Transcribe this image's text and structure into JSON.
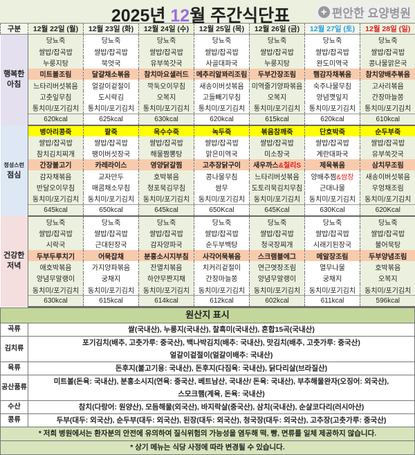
{
  "title": {
    "year": "2025년 ",
    "month": "12",
    "rest": "월 주간식단표",
    "logo": "편안한 요양병원"
  },
  "header": {
    "label": "구분",
    "days": [
      {
        "label": "12월 22일 (월)",
        "color": "#222222"
      },
      {
        "label": "12월 23일 (화)",
        "color": "#222222"
      },
      {
        "label": "12월 24일 (수)",
        "color": "#222222"
      },
      {
        "label": "12월 25일 (목)",
        "color": "#222222"
      },
      {
        "label": "12월 26일 (금)",
        "color": "#222222"
      },
      {
        "label": "12월 27일 (토)",
        "color": "#2aa0e0"
      },
      {
        "label": "12월 28일 (일)",
        "color": "#e0201e"
      }
    ]
  },
  "colors": {
    "breakfast_label": "#e4e0f0",
    "lunch_label": "#dde8f4",
    "dinner_label": "#f4dede",
    "highlight": "#f8cbad",
    "porridge": "#ffff00",
    "alt_column": "#ebf1de"
  },
  "meals": [
    {
      "line1": "행복한",
      "line2": "아침",
      "days": [
        {
          "items": [
            "당뇨죽",
            "쌀밥/잡곡밥",
            "누룽지탕",
            "미트볼조림",
            "느타리버섯볶음",
            "고춧잎무침",
            "통치미/포기김치"
          ],
          "kcal": "620kcal"
        },
        {
          "items": [
            "당뇨죽",
            "쌀밥/잡곡밥",
            "북엇국",
            "달걀채소볶음",
            "얼갈이겉절이",
            "도시락김",
            "통치미/포기김치"
          ],
          "kcal": "625kcal"
        },
        {
          "items": [
            "당뇨죽",
            "쌀밥/잡곡밥",
            "유부쑥갓국",
            "참치마요샐러드",
            "깍둑오이무침",
            "오복지",
            "통치미/포기김치"
          ],
          "kcal": "630kcal"
        },
        {
          "items": [
            "당뇨죽",
            "쌀밥/잡곡밥",
            "사골대파국",
            "메추리알꽈리조림",
            "새송이버섯볶음",
            "고들빼기무침",
            "통치미/포기김치"
          ],
          "kcal": "620kcal"
        },
        {
          "items": [
            "당뇨죽",
            "쌀밥/잡곡밥",
            "누룽지탕",
            "두부간장조림",
            "미역줄기양파볶음",
            "오복지",
            "통치미/포기김치"
          ],
          "kcal": "615kcal"
        },
        {
          "items": [
            "당뇨죽",
            "쌀밥/잡곡밥",
            "완도미역국",
            "햄감자채볶음",
            "숙주나물무침",
            "양념깻잎지",
            "통치미/포기김치"
          ],
          "kcal": "620kcal"
        },
        {
          "items": [
            "당뇨죽",
            "쌀밥/잡곡밥",
            "콩나물맑은국",
            "참치양배추볶음",
            "고사리볶음",
            "간장마늘쫑",
            "통치미/포기김치"
          ],
          "kcal": "610kcal"
        }
      ]
    },
    {
      "line1": "정성스런",
      "line2": "점심",
      "days": [
        {
          "items": [
            "병아리콩죽",
            "쌀밥/잡곡밥",
            "참치김치찌개",
            "간장불고기",
            "감자채볶음",
            "반달오이무침",
            "동치미/포기김치"
          ],
          "kcal": "645kcal"
        },
        {
          "items": [
            "팥죽",
            "쌀밥/잡곡밥",
            "팽이버섯장국",
            "카레라이스",
            "교자만두",
            "매콤채소무침",
            "동치미/포기김치"
          ],
          "kcal": "650kcal"
        },
        {
          "items": [
            "옥수수죽",
            "쌀밥/잡곡밥",
            "해물짬뽕탕",
            "영양닭갈찜",
            "호박볶음",
            "청포묵김무침",
            "동치미/포기김치"
          ],
          "kcal": "645kcal"
        },
        {
          "items": [
            "녹두죽",
            "쌀밥/잡곡밥",
            "맑은미역국",
            "고추장닭구이",
            "콩나물무침",
            "쌈무",
            "동치미/포기김치"
          ],
          "kcal": "650Kcal"
        },
        {
          "items": [
            "볶음참깨죽",
            "쌀밥/잡곡밥",
            "미소장국",
            "새우까스",
            "느타리버섯볶음",
            "도토리묵김치무침",
            "동치미/포기김치"
          ],
          "red": {
            "3": "&칠리S"
          },
          "kcal": "645Kcal"
        },
        {
          "items": [
            "단호박죽",
            "쌀밥/잡곡밥",
            "계란대파국",
            "제육볶음",
            "양배추찜",
            "근대나물",
            "동치미/포기김치"
          ],
          "red": {
            "4": "&쌈장"
          },
          "kcal": "630Kcal"
        },
        {
          "items": [
            "순두부죽",
            "쌀밥/잡곡밥",
            "유부쑥갓국",
            "삼치무조림",
            "새송이버섯볶음",
            "우엉채조림",
            "동치미/포기김치"
          ],
          "kcal": "620Kcal"
        }
      ]
    },
    {
      "line1": "건강한",
      "line2": "저녁",
      "days": [
        {
          "items": [
            "당뇨죽",
            "쌀밥/잡곡밥",
            "시락국",
            "두부두루치기",
            "애호박볶음",
            "양념무말랭이",
            "동치미/포기김치"
          ],
          "kcal": "630kcal"
        },
        {
          "items": [
            "당뇨죽",
            "쌀밥/잡곡밥",
            "근대된장국",
            "어묵잡채",
            "가지양파볶음",
            "궁채지",
            "동치미/포기김치"
          ],
          "kcal": "615kcal"
        },
        {
          "items": [
            "당뇨죽",
            "쌀밥/잡곡밥",
            "감자양파국",
            "분홍소시지부침",
            "잔멸치볶음",
            "하얀무짠지채",
            "동치미/포기김치"
          ],
          "kcal": "614kcal"
        },
        {
          "items": [
            "당뇨죽",
            "쌀밥/잡곡밥",
            "순두부백탕",
            "사각어묵볶음",
            "치커리겉절이",
            "간장마늘쫑",
            "동치미/포기김치"
          ],
          "kcal": "612kcal"
        },
        {
          "items": [
            "당뇨죽",
            "쌀밥/잡곡밥",
            "청국장찌개",
            "스크램블에그",
            "연근엿장조림",
            "양념무말랭이",
            "동치미/포기김치"
          ],
          "kcal": "602kcal"
        },
        {
          "items": [
            "당뇨죽",
            "쌀밥/잡곡밥",
            "시래기된장국",
            "메알장조림",
            "열무나물",
            "궁채지",
            "동치미/포기김치"
          ],
          "kcal": "611kcal"
        },
        {
          "items": [
            "당뇨죽",
            "쌀밥/잡곡밥",
            "불어묵탕",
            "두부양념조림",
            "호박볶음",
            "오복지",
            "동치미/포기김치"
          ],
          "kcal": "596kcal"
        }
      ]
    }
  ],
  "origin": {
    "title": "원산지 표시",
    "rows": [
      {
        "category": "곡류",
        "lines": [
          "쌀(국내산), 누룽지(국내산), 찰흑미(국내산), 혼합15곡(국내산)"
        ]
      },
      {
        "category": "김치류",
        "lines": [
          "포기김치(배추, 고춧가루: 중국산), 백나박김치(배추: 국내산), 맛김치(배추, 고춧가루: 중국산)",
          "얼갈이겉절이(얼갈이배추: 국내산)"
        ]
      },
      {
        "category": "육류",
        "lines": [
          "돈후지(불고기용: 국내산), 돈후지(다짐육: 국내산), 닭다리살(브라질산)"
        ]
      },
      {
        "category": "공산품류",
        "lines": [
          "미트볼(돈육: 국내산), 분홍소시지(연육: 중국산, 베트남산, 국내산/ 돈육: 국내산), 부추해물완자(오징어: 외국산),",
          "스모크햄(계육, 돈육: 국내산)"
        ]
      },
      {
        "category": "수산",
        "lines": [
          "참치(다랑어: 원양산), 모듬해물(외국산), 바지락살(중국산), 삼치(국내산), 순살코다리(러시아산)"
        ]
      },
      {
        "category": "콩류",
        "lines": [
          "두부(대두: 외국산), 순두부(대두: 외국산), 된장(대두: 외국산), 청국장(대두: 외국산), 고추장(고춧가루: 중국산)"
        ]
      }
    ],
    "notes": [
      "* 저희 병원에서는 환자분의 안전에 유의하여 질식위험의 가능성을 염두해 떡, 빵, 면류를 일체 제공하지 않습니다.",
      "* 상기 메뉴는 식당 사정에 따라 변경될 수 있습니다."
    ]
  }
}
